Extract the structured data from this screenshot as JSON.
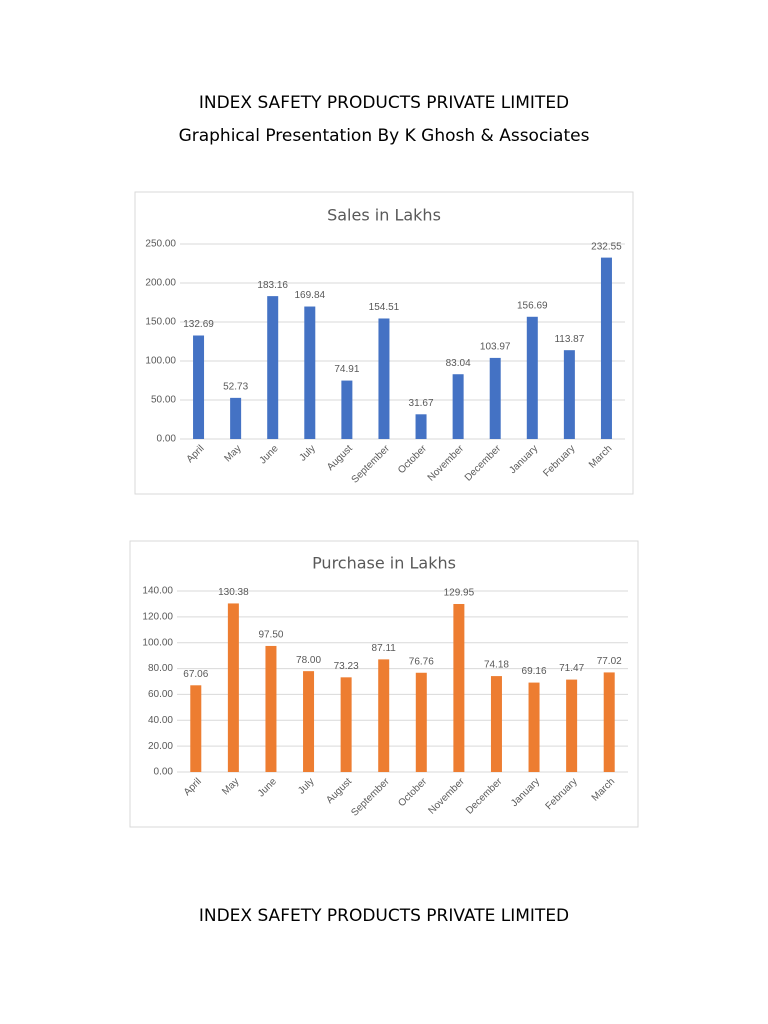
{
  "header": {
    "title": "INDEX SAFETY PRODUCTS PRIVATE LIMITED",
    "subtitle": "Graphical Presentation By K Ghosh & Associates"
  },
  "chart_data": [
    {
      "type": "bar",
      "title": "Sales in Lakhs",
      "categories": [
        "April",
        "May",
        "June",
        "July",
        "August",
        "September",
        "October",
        "November",
        "December",
        "January",
        "February",
        "March"
      ],
      "values": [
        132.69,
        52.73,
        183.16,
        169.84,
        74.91,
        154.51,
        31.67,
        83.04,
        103.97,
        156.69,
        113.87,
        232.55
      ],
      "color": "#4472c4",
      "ylim": [
        0,
        250
      ],
      "yticks": [
        {
          "value": 0,
          "label": "0.00"
        },
        {
          "value": 50,
          "label": "50.00"
        },
        {
          "value": 100,
          "label": "100.00"
        },
        {
          "value": 150,
          "label": "150.00"
        },
        {
          "value": 200,
          "label": "200.00"
        },
        {
          "value": 250,
          "label": "250.00"
        }
      ],
      "grid": true
    },
    {
      "type": "bar",
      "title": "Purchase in Lakhs",
      "categories": [
        "April",
        "May",
        "June",
        "July",
        "August",
        "September",
        "October",
        "November",
        "December",
        "January",
        "February",
        "March"
      ],
      "values": [
        67.06,
        130.38,
        97.5,
        78,
        73.23,
        87.11,
        76.76,
        129.95,
        74.18,
        69.16,
        71.47,
        77.02
      ],
      "value_labels": [
        "67.06",
        "130.38",
        "97.50",
        "78.00",
        "73.23",
        "87.11",
        "76.76",
        "129.95",
        "74.18",
        "69.16",
        "71.47",
        "77.02"
      ],
      "color": "#ed7d31",
      "ylim": [
        0,
        140
      ],
      "yticks": [
        {
          "value": 0,
          "label": "0.00"
        },
        {
          "value": 20,
          "label": "20.00"
        },
        {
          "value": 40,
          "label": "40.00"
        },
        {
          "value": 60,
          "label": "60.00"
        },
        {
          "value": 80,
          "label": "80.00"
        },
        {
          "value": 100,
          "label": "100.00"
        },
        {
          "value": 120,
          "label": "120.00"
        },
        {
          "value": 140,
          "label": "140.00"
        }
      ],
      "grid": true
    }
  ],
  "footer": {
    "title": "INDEX SAFETY PRODUCTS PRIVATE LIMITED"
  }
}
